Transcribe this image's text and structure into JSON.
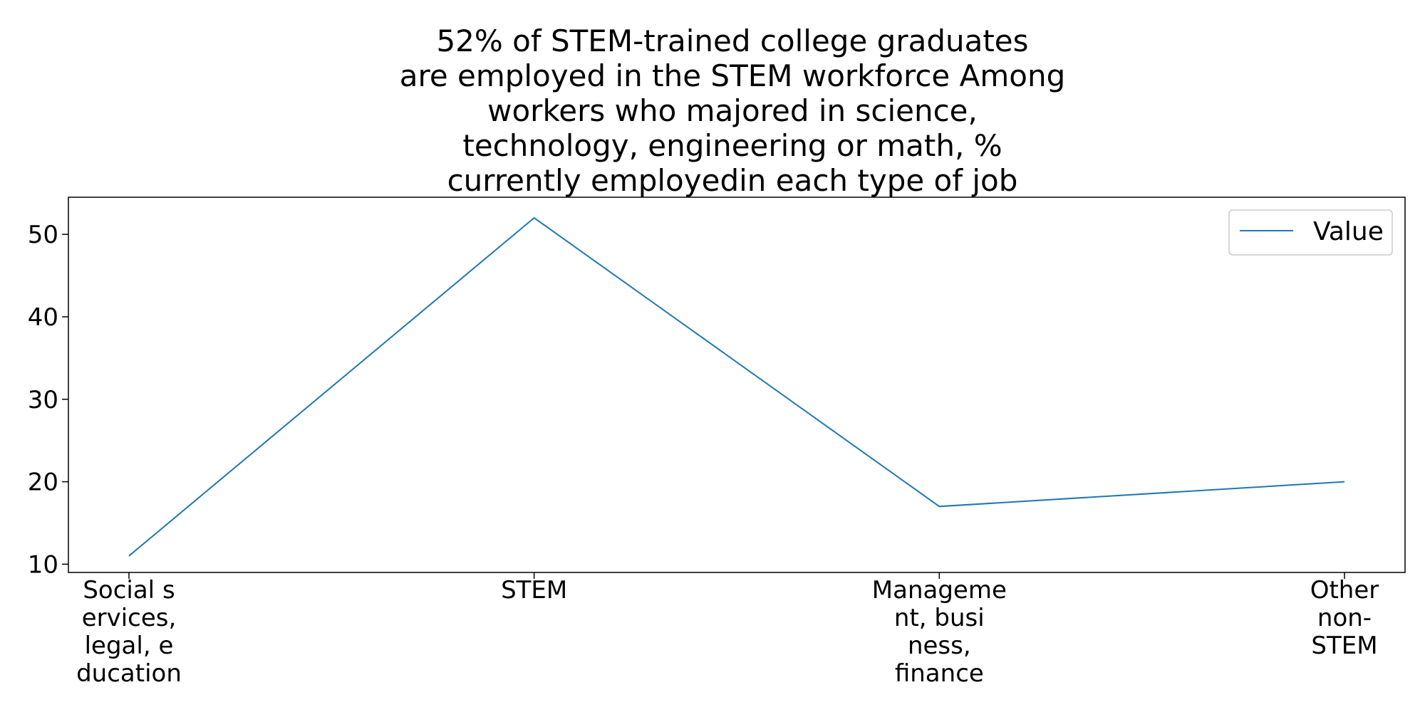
{
  "chart_data": {
    "type": "line",
    "title_lines": [
      "52% of STEM-trained college graduates",
      "are employed in the STEM workforce Among",
      "workers who majored in science,",
      "technology, engineering or math, %",
      "currently employedin each type of job"
    ],
    "categories": [
      [
        "Social s",
        "ervices,",
        "legal, e",
        "ducation"
      ],
      [
        "STEM"
      ],
      [
        "Manageme",
        "nt, busi",
        "ness,",
        "finance"
      ],
      [
        "Other",
        "non-",
        "STEM"
      ]
    ],
    "series": [
      {
        "name": "Value",
        "values": [
          11,
          52,
          17,
          20
        ],
        "color": "#1f77b4"
      }
    ],
    "xlabel": "",
    "ylabel": "",
    "ylim": [
      9,
      54.5
    ],
    "yticks": [
      10,
      20,
      30,
      40,
      50
    ],
    "grid": false,
    "legend_position": "top-right"
  }
}
